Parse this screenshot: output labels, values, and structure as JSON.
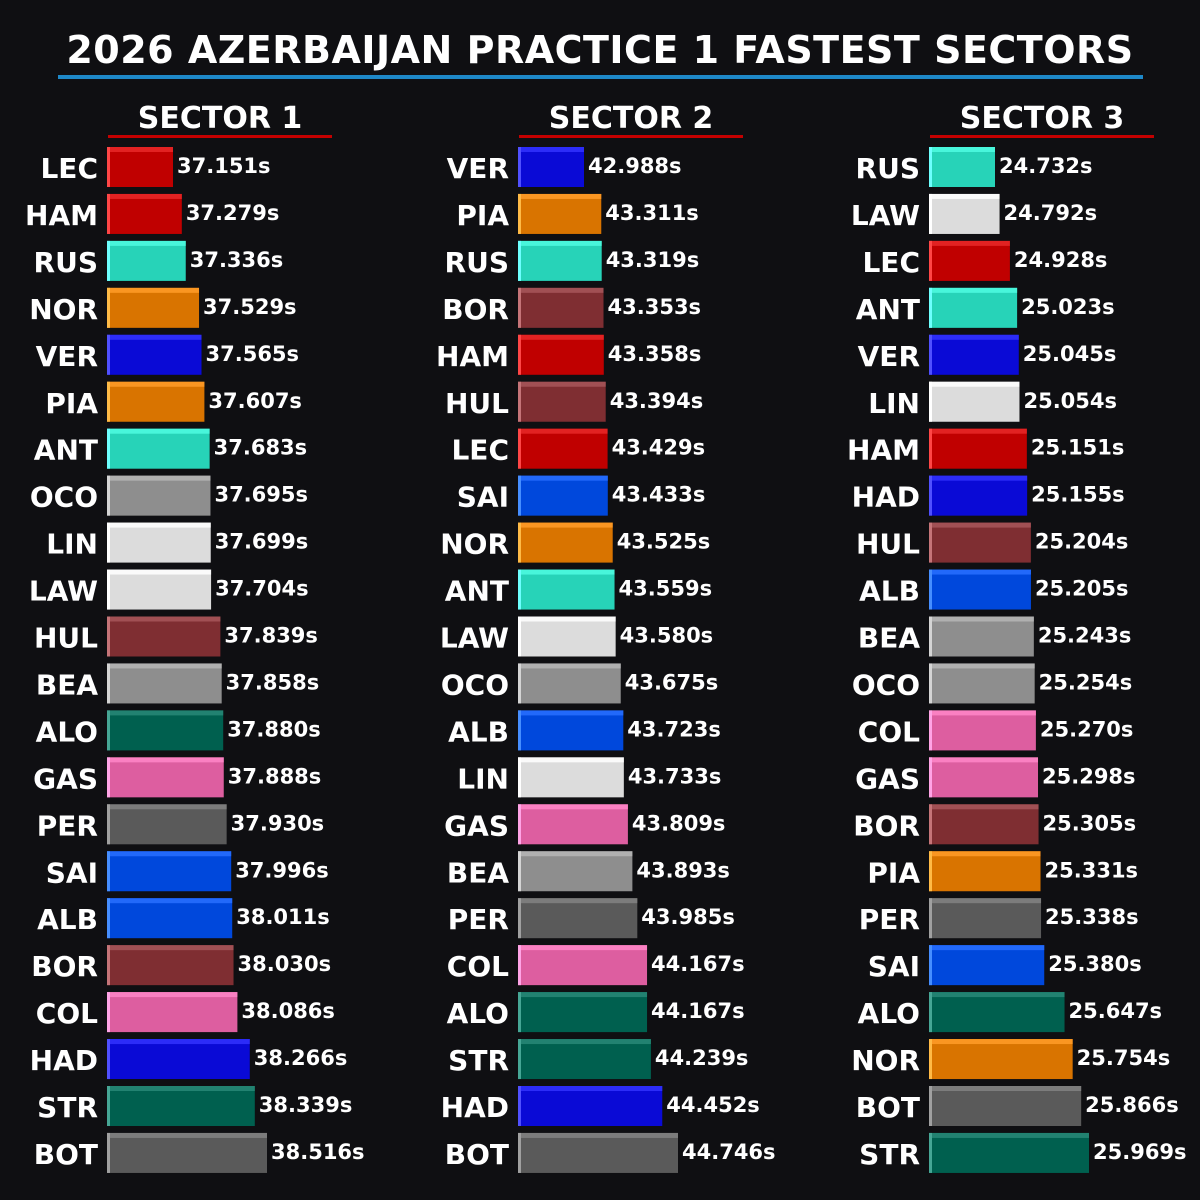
{
  "title": "2026 AZERBAIJAN PRACTICE 1 FASTEST SECTORS",
  "colors": {
    "background": "#0f0f12",
    "title_rule": "#1e88c8",
    "sector_rule": "#c40000",
    "Ferrari": "#c00000",
    "Mercedes": "#27d3b8",
    "McLaren": "#d97400",
    "Red Bull": "#0a0ad6",
    "Alpine": "#dd5ea0",
    "Haas": "#8e8e8e",
    "Racing Bulls": "#dcdcdc",
    "Audi": "#7f2e32",
    "Aston Martin": "#00604f",
    "Cadillac": "#5a5a5a",
    "Williams": "#0048dc"
  },
  "chart_data": [
    {
      "type": "bar",
      "title": "SECTOR 1",
      "unit": "s",
      "categories": [
        "LEC",
        "HAM",
        "RUS",
        "NOR",
        "VER",
        "PIA",
        "ANT",
        "OCO",
        "LIN",
        "LAW",
        "HUL",
        "BEA",
        "ALO",
        "GAS",
        "PER",
        "SAI",
        "ALB",
        "BOR",
        "COL",
        "HAD",
        "STR",
        "BOT"
      ],
      "values": [
        37.151,
        37.279,
        37.336,
        37.529,
        37.565,
        37.607,
        37.683,
        37.695,
        37.699,
        37.704,
        37.839,
        37.858,
        37.88,
        37.888,
        37.93,
        37.996,
        38.011,
        38.03,
        38.086,
        38.266,
        38.339,
        38.516
      ],
      "labels": [
        "37.151s",
        "37.279s",
        "37.336s",
        "37.529s",
        "37.565s",
        "37.607s",
        "37.683s",
        "37.695s",
        "37.699s",
        "37.704s",
        "37.839s",
        "37.858s",
        "37.880s",
        "37.888s",
        "37.930s",
        "37.996s",
        "38.011s",
        "38.030s",
        "38.086s",
        "38.266s",
        "38.339s",
        "38.516s"
      ],
      "teams": [
        "Ferrari",
        "Ferrari",
        "Mercedes",
        "McLaren",
        "Red Bull",
        "McLaren",
        "Mercedes",
        "Haas",
        "Racing Bulls",
        "Racing Bulls",
        "Audi",
        "Haas",
        "Aston Martin",
        "Alpine",
        "Cadillac",
        "Williams",
        "Williams",
        "Audi",
        "Alpine",
        "Red Bull",
        "Aston Martin",
        "Cadillac"
      ]
    },
    {
      "type": "bar",
      "title": "SECTOR 2",
      "unit": "s",
      "categories": [
        "VER",
        "PIA",
        "RUS",
        "BOR",
        "HAM",
        "HUL",
        "LEC",
        "SAI",
        "NOR",
        "ANT",
        "LAW",
        "OCO",
        "ALB",
        "LIN",
        "GAS",
        "BEA",
        "PER",
        "COL",
        "ALO",
        "STR",
        "HAD",
        "BOT"
      ],
      "values": [
        42.988,
        43.311,
        43.319,
        43.353,
        43.358,
        43.394,
        43.429,
        43.433,
        43.525,
        43.559,
        43.58,
        43.675,
        43.723,
        43.733,
        43.809,
        43.893,
        43.985,
        44.167,
        44.167,
        44.239,
        44.452,
        44.746
      ],
      "labels": [
        "42.988s",
        "43.311s",
        "43.319s",
        "43.353s",
        "43.358s",
        "43.394s",
        "43.429s",
        "43.433s",
        "43.525s",
        "43.559s",
        "43.580s",
        "43.675s",
        "43.723s",
        "43.733s",
        "43.809s",
        "43.893s",
        "43.985s",
        "44.167s",
        "44.167s",
        "44.239s",
        "44.452s",
        "44.746s"
      ],
      "teams": [
        "Red Bull",
        "McLaren",
        "Mercedes",
        "Audi",
        "Ferrari",
        "Audi",
        "Ferrari",
        "Williams",
        "McLaren",
        "Mercedes",
        "Racing Bulls",
        "Haas",
        "Williams",
        "Racing Bulls",
        "Alpine",
        "Haas",
        "Cadillac",
        "Alpine",
        "Aston Martin",
        "Aston Martin",
        "Red Bull",
        "Cadillac"
      ]
    },
    {
      "type": "bar",
      "title": "SECTOR 3",
      "unit": "s",
      "categories": [
        "RUS",
        "LAW",
        "LEC",
        "ANT",
        "VER",
        "LIN",
        "HAM",
        "HAD",
        "HUL",
        "ALB",
        "BEA",
        "OCO",
        "COL",
        "GAS",
        "BOR",
        "PIA",
        "PER",
        "SAI",
        "ALO",
        "NOR",
        "BOT",
        "STR"
      ],
      "values": [
        24.732,
        24.792,
        24.928,
        25.023,
        25.045,
        25.054,
        25.151,
        25.155,
        25.204,
        25.205,
        25.243,
        25.254,
        25.27,
        25.298,
        25.305,
        25.331,
        25.338,
        25.38,
        25.647,
        25.754,
        25.866,
        25.969
      ],
      "labels": [
        "24.732s",
        "24.792s",
        "24.928s",
        "25.023s",
        "25.045s",
        "25.054s",
        "25.151s",
        "25.155s",
        "25.204s",
        "25.205s",
        "25.243s",
        "25.254s",
        "25.270s",
        "25.298s",
        "25.305s",
        "25.331s",
        "25.338s",
        "25.380s",
        "25.647s",
        "25.754s",
        "25.866s",
        "25.969s"
      ],
      "teams": [
        "Mercedes",
        "Racing Bulls",
        "Ferrari",
        "Mercedes",
        "Red Bull",
        "Racing Bulls",
        "Ferrari",
        "Red Bull",
        "Audi",
        "Williams",
        "Haas",
        "Haas",
        "Alpine",
        "Alpine",
        "Audi",
        "McLaren",
        "Cadillac",
        "Williams",
        "Aston Martin",
        "McLaren",
        "Cadillac",
        "Aston Martin"
      ]
    }
  ]
}
